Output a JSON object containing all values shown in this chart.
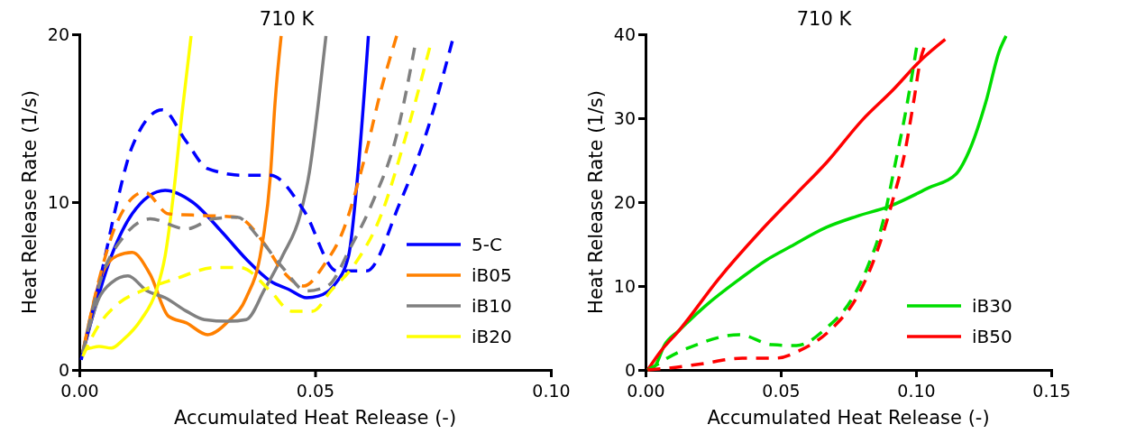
{
  "chart_data": [
    {
      "type": "line",
      "title": "710 K",
      "xlabel": "Accumulated Heat Release (-)",
      "ylabel": "Heat Release Rate (1/s)",
      "xlim": [
        0,
        0.1
      ],
      "ylim": [
        0,
        20
      ],
      "xticks": [
        {
          "value": 0,
          "label": "0.00"
        },
        {
          "value": 0.05,
          "label": "0.05"
        },
        {
          "value": 0.1,
          "label": "0.10"
        }
      ],
      "yticks": [
        0,
        10,
        20
      ],
      "legend": "bottom right",
      "grid": false,
      "series": [
        {
          "name": "5-C",
          "color": "#0000ff",
          "line_style": "solid",
          "x": [
            0.0007,
            0.0068,
            0.0112,
            0.0182,
            0.024,
            0.0303,
            0.0354,
            0.0405,
            0.0444,
            0.0482,
            0.0507,
            0.0539,
            0.0571,
            0.059,
            0.0613
          ],
          "values": [
            1.0,
            6.8,
            9.3,
            10.7,
            10.0,
            8.2,
            6.6,
            5.3,
            4.8,
            4.3,
            4.4,
            5.0,
            6.8,
            11.5,
            19.9
          ]
        },
        {
          "name": "iB05",
          "color": "#ff8000",
          "line_style": "solid",
          "x": [
            0.0007,
            0.0048,
            0.008,
            0.0112,
            0.015,
            0.0189,
            0.0227,
            0.0272,
            0.0316,
            0.0354,
            0.0386,
            0.0405,
            0.0415,
            0.0428
          ],
          "values": [
            1.0,
            5.7,
            6.8,
            7.0,
            5.7,
            3.2,
            2.8,
            2.1,
            2.9,
            4.3,
            7.2,
            11.5,
            15.9,
            19.9
          ]
        },
        {
          "name": "iB10",
          "color": "#808080",
          "line_style": "solid",
          "x": [
            0.0007,
            0.0042,
            0.0068,
            0.0103,
            0.0144,
            0.0182,
            0.0227,
            0.0265,
            0.0316,
            0.0354,
            0.0393,
            0.0431,
            0.0469,
            0.0488,
            0.0507,
            0.0523
          ],
          "values": [
            1.0,
            4.3,
            5.2,
            5.6,
            4.7,
            4.3,
            3.5,
            3.0,
            2.9,
            3.0,
            4.8,
            6.8,
            9.3,
            11.8,
            15.9,
            19.9
          ]
        },
        {
          "name": "iB20",
          "color": "#ffff00",
          "line_style": "solid",
          "x": [
            0.0007,
            0.0023,
            0.0042,
            0.0068,
            0.0093,
            0.0131,
            0.0163,
            0.0182,
            0.0201,
            0.0217,
            0.0237
          ],
          "values": [
            1.2,
            1.3,
            1.4,
            1.3,
            1.8,
            3.0,
            4.7,
            6.8,
            10.8,
            15.1,
            19.9
          ]
        },
        {
          "color": "#0000ff",
          "line_style": "dashed",
          "x": [
            0.0004,
            0.0048,
            0.008,
            0.0112,
            0.0176,
            0.0227,
            0.0272,
            0.0348,
            0.0405,
            0.0476,
            0.0546,
            0.0609,
            0.0679,
            0.0737,
            0.0791
          ],
          "values": [
            0.6,
            5.9,
            10.0,
            13.3,
            15.5,
            13.6,
            12.0,
            11.6,
            11.6,
            9.5,
            5.9,
            5.9,
            9.9,
            14.2,
            19.6
          ]
        },
        {
          "color": "#ff8000",
          "line_style": "dashed",
          "x": [
            0.001,
            0.0042,
            0.008,
            0.0138,
            0.0189,
            0.0265,
            0.0335,
            0.0393,
            0.0431,
            0.0476,
            0.052,
            0.0558,
            0.0603,
            0.0641,
            0.0673
          ],
          "values": [
            1.4,
            5.4,
            8.8,
            10.6,
            9.3,
            9.2,
            9.1,
            7.5,
            5.9,
            5.0,
            6.3,
            8.2,
            12.4,
            16.8,
            19.9
          ]
        },
        {
          "color": "#808080",
          "line_style": "dashed",
          "x": [
            0.0007,
            0.0048,
            0.0093,
            0.015,
            0.0227,
            0.0284,
            0.0335,
            0.038,
            0.0431,
            0.0482,
            0.0526,
            0.0577,
            0.0622,
            0.0673,
            0.0711
          ],
          "values": [
            1.0,
            5.6,
            7.9,
            9.0,
            8.4,
            9.0,
            9.1,
            7.9,
            6.1,
            4.7,
            5.0,
            7.4,
            10.0,
            14.0,
            19.2
          ]
        },
        {
          "color": "#ffff00",
          "line_style": "dashed",
          "x": [
            0.0007,
            0.0042,
            0.008,
            0.0131,
            0.0201,
            0.029,
            0.0342,
            0.0405,
            0.045,
            0.0495,
            0.0533,
            0.0584,
            0.0641,
            0.0686,
            0.0743
          ],
          "values": [
            0.8,
            2.7,
            3.9,
            4.7,
            5.4,
            6.1,
            6.1,
            4.7,
            3.5,
            3.5,
            4.7,
            6.3,
            9.3,
            13.3,
            19.2
          ]
        }
      ]
    },
    {
      "type": "line",
      "title": "710 K",
      "xlabel": "Accumulated Heat Release (-)",
      "ylabel": "Heat Release Rate (1/s)",
      "xlim": [
        0,
        0.15
      ],
      "ylim": [
        0,
        40
      ],
      "xticks": [
        {
          "value": 0,
          "label": "0.00"
        },
        {
          "value": 0.05,
          "label": "0.05"
        },
        {
          "value": 0.1,
          "label": "0.10"
        },
        {
          "value": 0.15,
          "label": "0.15"
        }
      ],
      "yticks": [
        0,
        10,
        20,
        30,
        40
      ],
      "legend": "bottom right",
      "grid": false,
      "series": [
        {
          "name": "iB30",
          "color": "#00dd00",
          "line_style": "solid",
          "x": [
            0.0008,
            0.0036,
            0.0069,
            0.0124,
            0.0224,
            0.0347,
            0.0447,
            0.0536,
            0.0669,
            0.078,
            0.0902,
            0.1047,
            0.1147,
            0.1202,
            0.1258,
            0.1308,
            0.1333
          ],
          "values": [
            0,
            0.5,
            2.9,
            4.7,
            7.7,
            10.8,
            13.1,
            14.7,
            17.0,
            18.3,
            19.5,
            21.7,
            23.3,
            26.5,
            31.9,
            38.0,
            39.8
          ]
        },
        {
          "name": "iB50",
          "color": "#ff0000",
          "line_style": "solid",
          "x": [
            0.0008,
            0.0058,
            0.0124,
            0.0269,
            0.0424,
            0.0558,
            0.0669,
            0.0802,
            0.0913,
            0.1024,
            0.1108
          ],
          "values": [
            0,
            2.3,
            4.7,
            10.8,
            16.5,
            21.0,
            24.7,
            29.8,
            33.3,
            37.1,
            39.4
          ]
        },
        {
          "color": "#00dd00",
          "line_style": "dashed",
          "x": [
            0.0008,
            0.0036,
            0.008,
            0.018,
            0.0347,
            0.0469,
            0.0558,
            0.0669,
            0.0758,
            0.0824,
            0.088,
            0.0924,
            0.0958,
            0.0991,
            0.1002
          ],
          "values": [
            0,
            0.5,
            1.4,
            2.9,
            4.2,
            3.0,
            2.9,
            5.0,
            8.2,
            12.5,
            17.9,
            24.7,
            30.1,
            36.2,
            38.4
          ]
        },
        {
          "color": "#ff0000",
          "line_style": "dashed",
          "x": [
            0.0008,
            0.008,
            0.0202,
            0.0358,
            0.0481,
            0.0569,
            0.0691,
            0.078,
            0.0858,
            0.0913,
            0.0958,
            0.0991,
            0.1019,
            0.103
          ],
          "values": [
            0,
            0.2,
            0.7,
            1.4,
            1.4,
            2.3,
            5.0,
            8.6,
            14.3,
            20.1,
            25.8,
            31.9,
            37.3,
            38.4
          ]
        }
      ]
    }
  ]
}
